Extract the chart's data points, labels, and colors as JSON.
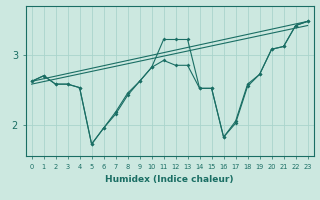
{
  "xlabel": "Humidex (Indice chaleur)",
  "bg_color": "#cce8e0",
  "grid_color": "#aad4cc",
  "line_color": "#1a6e64",
  "xlim": [
    -0.5,
    23.5
  ],
  "ylim": [
    1.55,
    3.7
  ],
  "yticks": [
    2,
    3
  ],
  "xticks": [
    0,
    1,
    2,
    3,
    4,
    5,
    6,
    7,
    8,
    9,
    10,
    11,
    12,
    13,
    14,
    15,
    16,
    17,
    18,
    19,
    20,
    21,
    22,
    23
  ],
  "series_with_markers": [
    {
      "x": [
        0,
        1,
        2,
        3,
        4,
        5,
        6,
        7,
        8,
        9,
        10,
        11,
        12,
        13,
        14,
        15,
        16,
        17,
        18,
        19,
        20,
        21,
        22,
        23
      ],
      "y": [
        2.62,
        2.7,
        2.58,
        2.58,
        2.53,
        1.72,
        1.95,
        2.15,
        2.42,
        2.62,
        2.82,
        3.22,
        3.22,
        3.22,
        2.52,
        2.52,
        1.82,
        2.05,
        2.58,
        2.72,
        3.08,
        3.12,
        3.42,
        3.48
      ]
    },
    {
      "x": [
        0,
        1,
        2,
        3,
        4,
        5,
        6,
        7,
        8,
        9,
        10,
        11,
        12,
        13,
        14,
        15,
        16,
        17,
        18,
        19,
        20,
        21,
        22,
        23
      ],
      "y": [
        2.62,
        2.7,
        2.58,
        2.58,
        2.53,
        1.72,
        1.95,
        2.18,
        2.45,
        2.62,
        2.82,
        2.92,
        2.85,
        2.85,
        2.52,
        2.52,
        1.82,
        2.02,
        2.55,
        2.72,
        3.08,
        3.12,
        3.42,
        3.48
      ]
    }
  ],
  "series_lines_only": [
    {
      "x": [
        0,
        23
      ],
      "y": [
        2.62,
        3.48
      ]
    },
    {
      "x": [
        0,
        23
      ],
      "y": [
        2.58,
        3.42
      ]
    }
  ]
}
